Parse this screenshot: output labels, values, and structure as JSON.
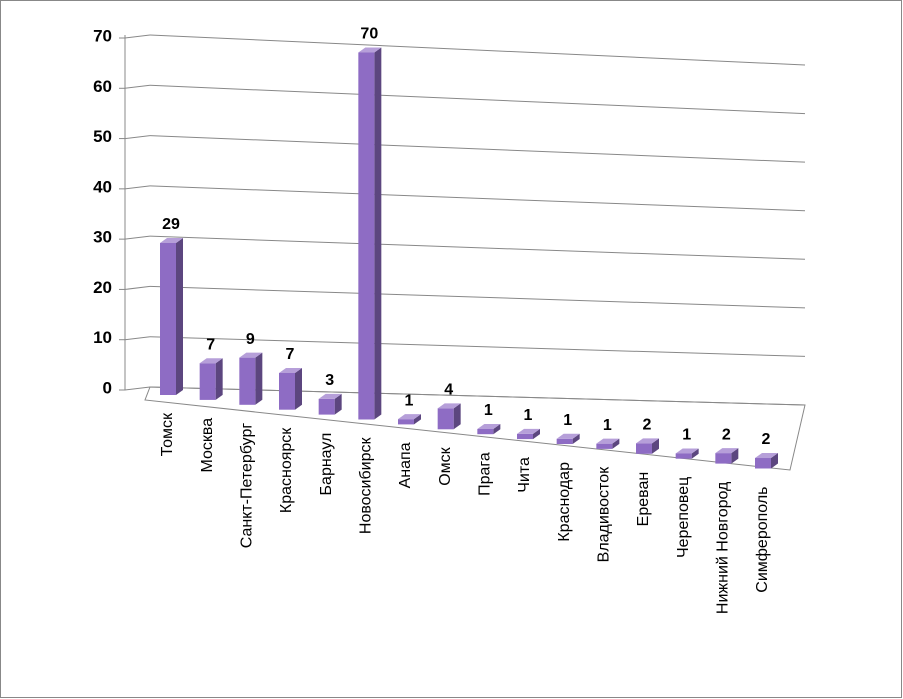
{
  "chart_data": {
    "type": "bar3d",
    "categories": [
      "Томск",
      "Москва",
      "Санкт-Петербург",
      "Красноярск",
      "Барнаул",
      "Новосибирск",
      "Анапа",
      "Омск",
      "Прага",
      "Чита",
      "Краснодар",
      "Владивосток",
      "Ереван",
      "Череповец",
      "Нижний Новгород",
      "Симферополь"
    ],
    "values": [
      29,
      7,
      9,
      7,
      3,
      70,
      1,
      4,
      1,
      1,
      1,
      1,
      2,
      1,
      2,
      2
    ],
    "color": "#8e6cc4",
    "ylim": [
      0,
      70
    ],
    "yticks": [
      0,
      10,
      20,
      30,
      40,
      50,
      60,
      70
    ],
    "grid": true,
    "data_labels": true
  }
}
